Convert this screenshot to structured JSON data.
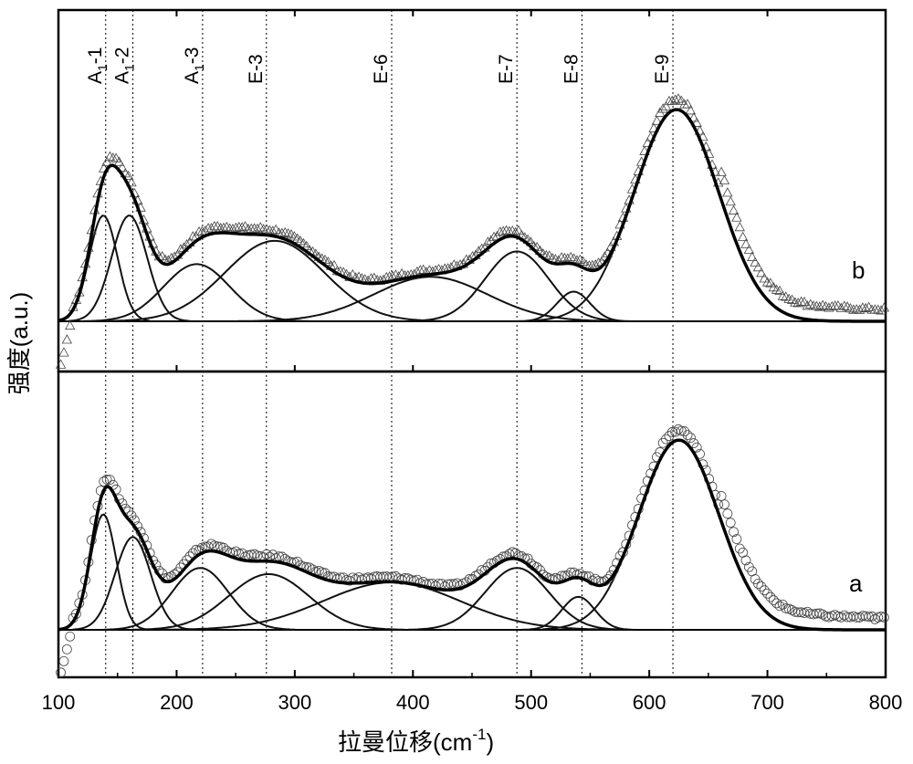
{
  "chart_data": {
    "type": "line",
    "xlabel_main": "拉曼位移(cm",
    "xlabel_sup": "-1",
    "xlabel_close": ")",
    "ylabel": "强度(a.u.)",
    "xlim": [
      100,
      800
    ],
    "x_ticks": [
      "100",
      "200",
      "300",
      "400",
      "500",
      "600",
      "700",
      "800"
    ],
    "x_tick_values": [
      100,
      200,
      300,
      400,
      500,
      600,
      700,
      800
    ],
    "grid": false,
    "reference_lines": [
      {
        "label_main": "A",
        "label_sub": "1",
        "label_tail": "-1",
        "x": 140
      },
      {
        "label_main": "A",
        "label_sub": "1",
        "label_tail": "-2",
        "x": 163
      },
      {
        "label_main": "A",
        "label_sub": "1",
        "label_tail": "-3",
        "x": 222
      },
      {
        "label_main": "E-3",
        "label_sub": "",
        "label_tail": "",
        "x": 276
      },
      {
        "label_main": "E-6",
        "label_sub": "",
        "label_tail": "",
        "x": 382
      },
      {
        "label_main": "E-7",
        "label_sub": "",
        "label_tail": "",
        "x": 488
      },
      {
        "label_main": "E-8",
        "label_sub": "",
        "label_tail": "",
        "x": 543
      },
      {
        "label_main": "E-9",
        "label_sub": "",
        "label_tail": "",
        "x": 620
      }
    ],
    "panels": [
      {
        "label": "b",
        "position": "top",
        "marker": "triangle",
        "peaks": [
          {
            "center": 138,
            "amplitude": 0.5,
            "width": 12
          },
          {
            "center": 160,
            "amplitude": 0.5,
            "width": 15
          },
          {
            "center": 217,
            "amplitude": 0.27,
            "width": 28
          },
          {
            "center": 283,
            "amplitude": 0.38,
            "width": 42
          },
          {
            "center": 415,
            "amplitude": 0.21,
            "width": 48
          },
          {
            "center": 488,
            "amplitude": 0.33,
            "width": 27
          },
          {
            "center": 536,
            "amplitude": 0.14,
            "width": 14
          },
          {
            "center": 623,
            "amplitude": 1.0,
            "width": 36
          }
        ]
      },
      {
        "label": "a",
        "position": "bottom",
        "marker": "circle",
        "peaks": [
          {
            "center": 138,
            "amplitude": 0.56,
            "width": 11
          },
          {
            "center": 163,
            "amplitude": 0.45,
            "width": 15
          },
          {
            "center": 220,
            "amplitude": 0.3,
            "width": 24
          },
          {
            "center": 278,
            "amplitude": 0.27,
            "width": 34
          },
          {
            "center": 382,
            "amplitude": 0.23,
            "width": 58
          },
          {
            "center": 488,
            "amplitude": 0.3,
            "width": 27
          },
          {
            "center": 540,
            "amplitude": 0.16,
            "width": 14
          },
          {
            "center": 625,
            "amplitude": 0.92,
            "width": 34
          }
        ]
      }
    ]
  }
}
